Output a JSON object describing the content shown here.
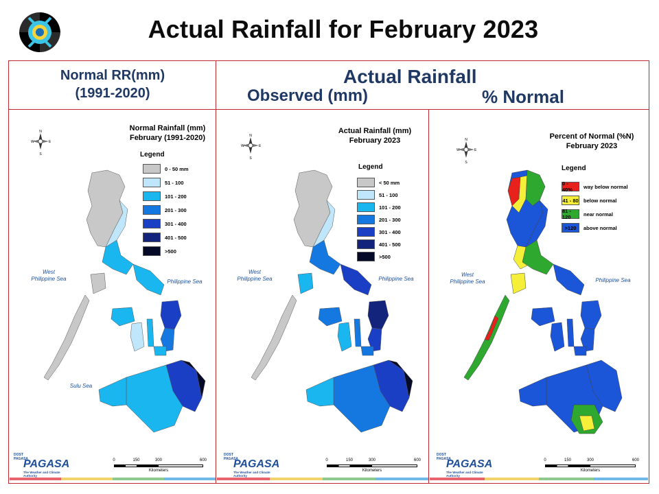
{
  "slide": {
    "title": "Actual Rainfall for February 2023",
    "header_normal": [
      "Normal RR(mm)",
      "(1991-2020)"
    ],
    "header_actual": "Actual Rainfall",
    "header_observed": "Observed (mm)",
    "header_percent": "% Normal"
  },
  "compass": {
    "n": "N",
    "s": "S",
    "e": "E",
    "w": "W"
  },
  "panels": [
    {
      "id": "normal",
      "title": [
        "Normal Rainfall (mm)",
        "February (1991-2020)"
      ],
      "legend_title": "Legend",
      "legend": [
        {
          "label": "0 - 50 mm",
          "color": "#c8c8c8",
          "box_text": ""
        },
        {
          "label": "51 - 100",
          "color": "#bfe6fb",
          "box_text": ""
        },
        {
          "label": "101 - 200",
          "color": "#1ab6f0",
          "box_text": ""
        },
        {
          "label": "201 - 300",
          "color": "#1578e0",
          "box_text": ""
        },
        {
          "label": "301 - 400",
          "color": "#1a3fc4",
          "box_text": ""
        },
        {
          "label": "401 - 500",
          "color": "#13247c",
          "box_text": ""
        },
        {
          "label": ">500",
          "color": "#050a28",
          "box_text": ""
        }
      ],
      "seas": {
        "west": [
          "West",
          "Philippine Sea"
        ],
        "east": "Philippine Sea",
        "south": "Sulu Sea"
      },
      "scale": {
        "ticks": [
          "0",
          "150",
          "300",
          "600"
        ],
        "unit": "Kilometers"
      },
      "logo": {
        "small": [
          "DOST",
          "PAGASA"
        ],
        "big": "PAGASA",
        "sub": "The Weather and Climate Authority"
      }
    },
    {
      "id": "observed",
      "title": [
        "Actual Rainfall (mm)",
        "February 2023"
      ],
      "legend_title": "Legend",
      "legend": [
        {
          "label": "< 50 mm",
          "color": "#c8c8c8",
          "box_text": ""
        },
        {
          "label": "51 - 100",
          "color": "#bfe6fb",
          "box_text": ""
        },
        {
          "label": "101 - 200",
          "color": "#1ab6f0",
          "box_text": ""
        },
        {
          "label": "201 - 300",
          "color": "#1578e0",
          "box_text": ""
        },
        {
          "label": "301 - 400",
          "color": "#1a3fc4",
          "box_text": ""
        },
        {
          "label": "401 - 500",
          "color": "#13247c",
          "box_text": ""
        },
        {
          "label": ">500",
          "color": "#050a28",
          "box_text": ""
        }
      ],
      "seas": {
        "west": [
          "West",
          "Philippine Sea"
        ],
        "east": "Philippine Sea",
        "south": ""
      },
      "scale": {
        "ticks": [
          "0",
          "150",
          "300",
          "600"
        ],
        "unit": "Kilometers"
      },
      "logo": {
        "small": [
          "DOST",
          "PAGASA"
        ],
        "big": "PAGASA",
        "sub": "The Weather and Climate Authority"
      }
    },
    {
      "id": "percent",
      "title": [
        "Percent of Normal (%N)",
        "February 2023"
      ],
      "legend_title": "Legend",
      "legend": [
        {
          "label": "way below normal",
          "color": "#e8211c",
          "box_text": "0 - 40%"
        },
        {
          "label": "below normal",
          "color": "#f5ef3a",
          "box_text": "41 - 80"
        },
        {
          "label": "near normal",
          "color": "#2fa82f",
          "box_text": "81 - 120"
        },
        {
          "label": "above normal",
          "color": "#1b55d8",
          "box_text": ">120"
        }
      ],
      "seas": {
        "west": [
          "West",
          "Philippine Sea"
        ],
        "east": "Philippine Sea",
        "south": ""
      },
      "scale": {
        "ticks": [
          "0",
          "150",
          "300",
          "600"
        ],
        "unit": "Kilometers"
      },
      "logo": {
        "small": [
          "DOST",
          "PAGASA"
        ],
        "big": "PAGASA",
        "sub": "The Weather and Climate Authority"
      }
    }
  ],
  "colors": {
    "frame_border": "#c0282f",
    "header_text": "#1f3864",
    "stripes": [
      "#e8636b",
      "#f2d36b",
      "#8fc98f",
      "#6fb9e8"
    ]
  }
}
